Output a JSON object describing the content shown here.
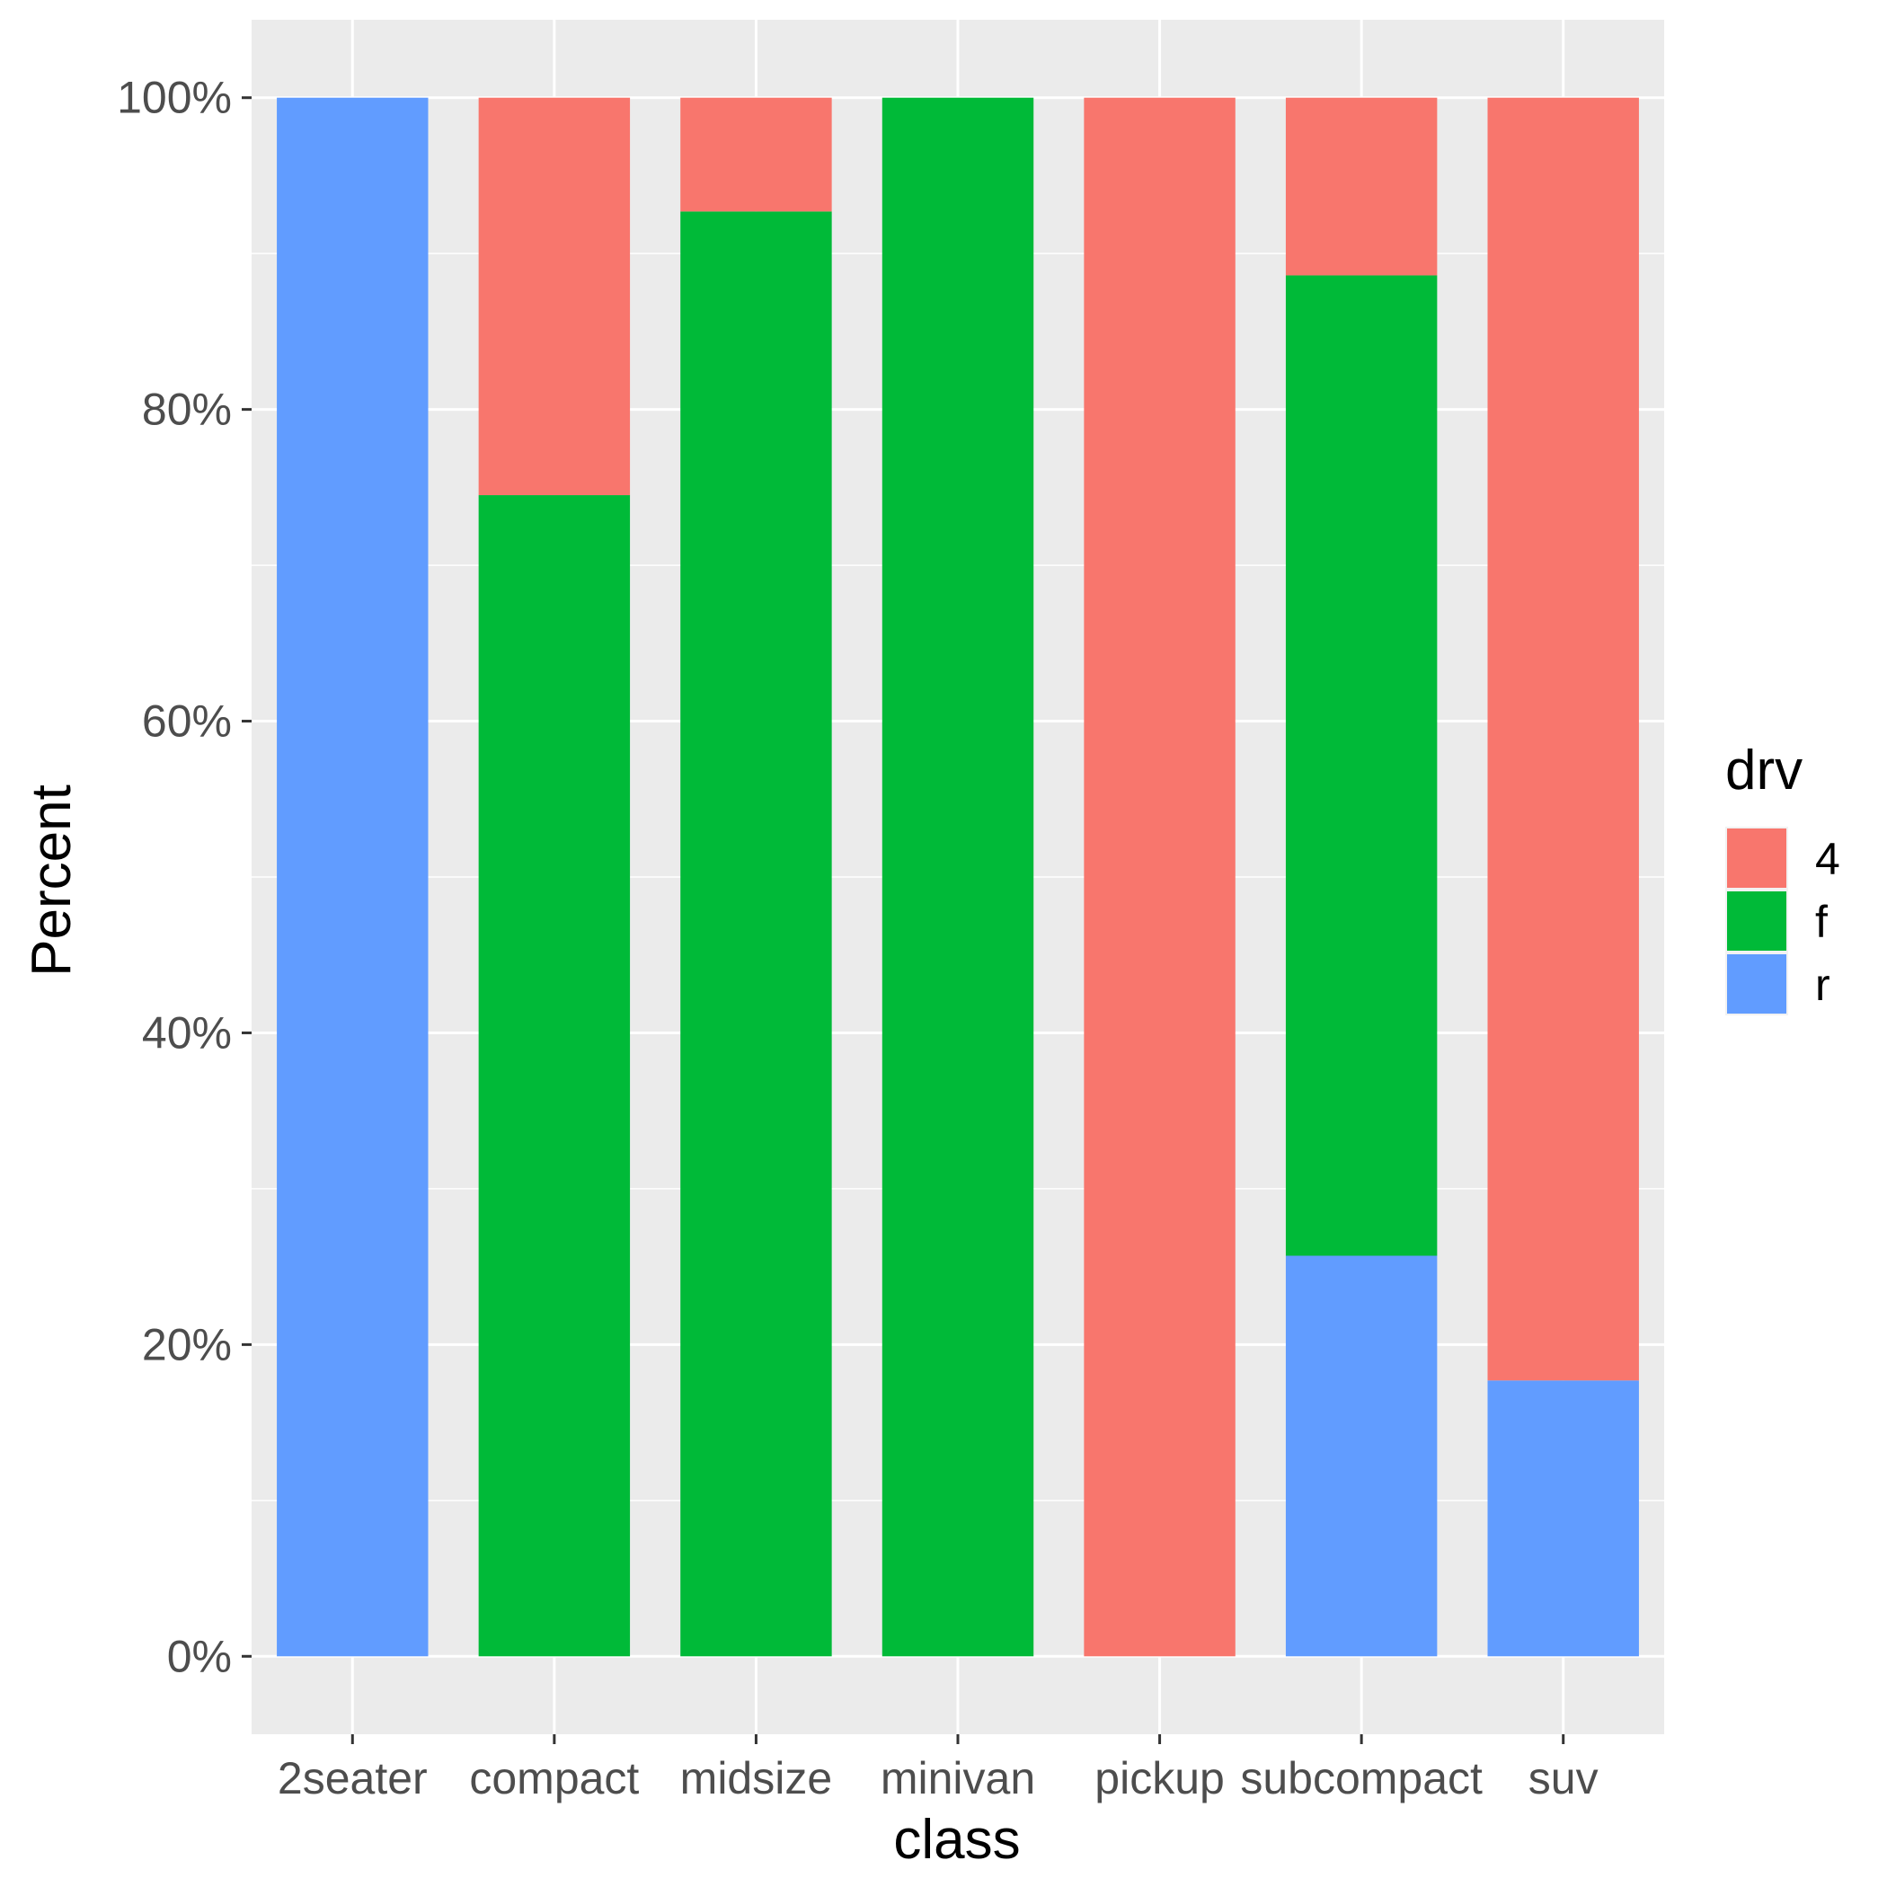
{
  "chart_data": {
    "type": "bar",
    "stacked": true,
    "percent": true,
    "xlabel": "class",
    "ylabel": "Percent",
    "ylim": [
      -0.05,
      1.05
    ],
    "yticks": [
      0,
      0.2,
      0.4,
      0.6,
      0.8,
      1.0
    ],
    "ytick_labels": [
      "0%",
      "20%",
      "40%",
      "60%",
      "80%",
      "100%"
    ],
    "categories": [
      "2seater",
      "compact",
      "midsize",
      "minivan",
      "pickup",
      "subcompact",
      "suv"
    ],
    "series": [
      {
        "name": "4",
        "color": "#F8766D",
        "values": [
          0.0,
          0.255,
          0.073,
          0.0,
          1.0,
          0.114,
          0.823
        ]
      },
      {
        "name": "f",
        "color": "#00BA38",
        "values": [
          0.0,
          0.745,
          0.927,
          1.0,
          0.0,
          0.629,
          0.0
        ]
      },
      {
        "name": "r",
        "color": "#619CFF",
        "values": [
          1.0,
          0.0,
          0.0,
          0.0,
          0.0,
          0.257,
          0.177
        ]
      }
    ],
    "stack_order_bottom_to_top": [
      "r",
      "f",
      "4"
    ],
    "legend": {
      "title": "drv",
      "position": "right",
      "entries": [
        "4",
        "f",
        "r"
      ]
    },
    "grid": true,
    "panel_background": "#EBEBEB"
  }
}
